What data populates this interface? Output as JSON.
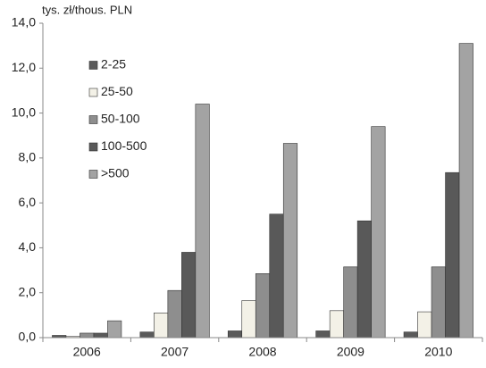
{
  "chart_data": {
    "type": "bar",
    "y_label": "tys. zł/thous. PLN",
    "categories": [
      "2006",
      "2007",
      "2008",
      "2009",
      "2010"
    ],
    "series": [
      {
        "name": "2-25",
        "color": "#5a5a5a",
        "values": [
          0.1,
          0.25,
          0.3,
          0.3,
          0.25
        ]
      },
      {
        "name": "25-50",
        "color": "#f3f1e7",
        "values": [
          0.05,
          1.1,
          1.65,
          1.2,
          1.15
        ]
      },
      {
        "name": "50-100",
        "color": "#8e8e8e",
        "values": [
          0.2,
          2.1,
          2.85,
          3.15,
          3.15
        ]
      },
      {
        "name": "100-500",
        "color": "#595959",
        "values": [
          0.2,
          3.8,
          5.5,
          5.2,
          7.35
        ]
      },
      {
        "name": ">500",
        "color": "#a3a3a3",
        "values": [
          0.75,
          10.4,
          8.65,
          9.4,
          13.1
        ]
      }
    ],
    "ylim": [
      0,
      14
    ],
    "yticks": [
      {
        "value": 0,
        "label": "0,0"
      },
      {
        "value": 2,
        "label": "2,0"
      },
      {
        "value": 4,
        "label": "4,0"
      },
      {
        "value": 6,
        "label": "6,0"
      },
      {
        "value": 8,
        "label": "8,0"
      },
      {
        "value": 10,
        "label": "10,0"
      },
      {
        "value": 12,
        "label": "12,0"
      },
      {
        "value": 14,
        "label": "14,0"
      }
    ],
    "grid": false,
    "legend": "upper left"
  }
}
